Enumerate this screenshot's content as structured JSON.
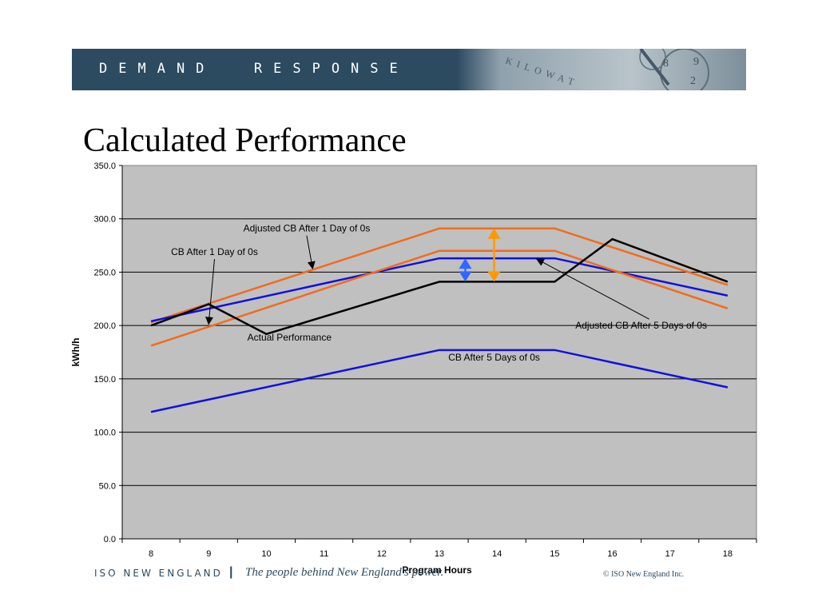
{
  "header": {
    "banner_text": "DEMAND  RESPONSE",
    "banner_art_text": "KILOWAT",
    "title": "Calculated Performance"
  },
  "footer": {
    "org": "ISO NEW ENGLAND",
    "separator": "|",
    "tagline": "The people behind New England's power.",
    "copyright": "© ISO New England Inc."
  },
  "colors": {
    "banner": "#2c4a60",
    "plot_bg": "#c0c0c0",
    "orange": "#f26b1d",
    "blue": "#1010e0",
    "black": "#000000",
    "arrow_orange": "#ff9900",
    "arrow_blue": "#3366ff"
  },
  "chart_data": {
    "type": "line",
    "xlabel": "Program Hours",
    "ylabel": "kWh/h",
    "ylim": [
      0,
      350
    ],
    "yticks": [
      "0.0",
      "50.0",
      "100.0",
      "150.0",
      "200.0",
      "250.0",
      "300.0",
      "350.0"
    ],
    "x": [
      8,
      9,
      10,
      11,
      12,
      13,
      14,
      15,
      16,
      17,
      18
    ],
    "grid": true,
    "legend": "none",
    "series": [
      {
        "name": "Adjusted CB After 1 Day of 0s",
        "color": "#f26b1d",
        "points": [
          [
            8,
            203
          ],
          [
            13,
            291
          ],
          [
            15,
            291
          ],
          [
            18,
            238
          ]
        ]
      },
      {
        "name": "CB After 1 Day of 0s",
        "color": "#1010e0",
        "points": [
          [
            8,
            204
          ],
          [
            13,
            263
          ],
          [
            15,
            263
          ],
          [
            18,
            228
          ]
        ]
      },
      {
        "name": "Adjusted CB After 5 Days of 0s",
        "color": "#f26b1d",
        "points": [
          [
            8,
            181
          ],
          [
            13,
            270
          ],
          [
            15,
            270
          ],
          [
            18,
            216
          ]
        ]
      },
      {
        "name": "Actual Performance",
        "color": "#000000",
        "points": [
          [
            8,
            200
          ],
          [
            9,
            220
          ],
          [
            10,
            192
          ],
          [
            13,
            241
          ],
          [
            15,
            241
          ],
          [
            16,
            281
          ],
          [
            18,
            241
          ]
        ]
      },
      {
        "name": "CB After 5 Days of 0s",
        "color": "#1010e0",
        "points": [
          [
            8,
            119
          ],
          [
            13,
            177
          ],
          [
            15,
            177
          ],
          [
            18,
            142
          ]
        ]
      }
    ],
    "annotations": [
      {
        "text": "Adjusted CB After 1 Day of 0s",
        "x": 10.7,
        "y": 288,
        "arrow_to": [
          10.8,
          254
        ]
      },
      {
        "text": "CB After 1 Day of 0s",
        "x": 9.1,
        "y": 266,
        "arrow_to": [
          9.0,
          202
        ]
      },
      {
        "text": "Adjusted CB After 5 Days of 0s",
        "x": 16.5,
        "y": 197,
        "arrow_to": [
          14.7,
          262
        ]
      },
      {
        "text": "Actual Performance",
        "x": 10.4,
        "y": 186,
        "arrow_to": null
      },
      {
        "text": "CB After 5 Days of 0s",
        "x": 13.95,
        "y": 167,
        "arrow_to": null
      }
    ],
    "range_arrows": [
      {
        "color": "#ff9900",
        "x": 13.95,
        "y_from": 241,
        "y_to": 291
      },
      {
        "color": "#3366ff",
        "x": 13.45,
        "y_from": 241,
        "y_to": 263
      }
    ]
  }
}
